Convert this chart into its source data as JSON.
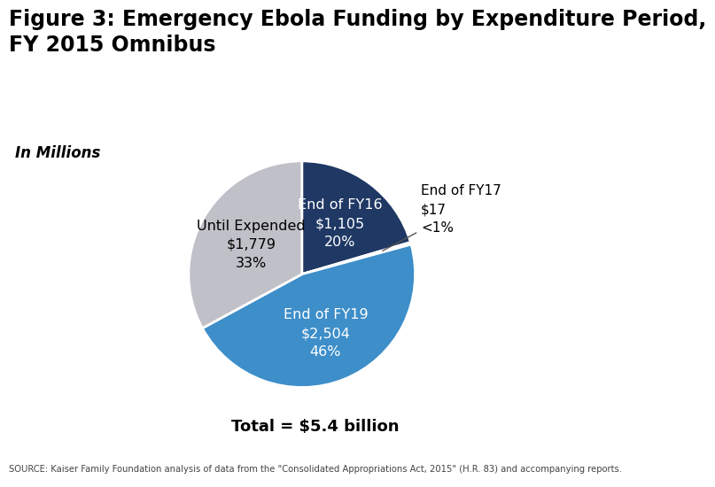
{
  "title": "Figure 3: Emergency Ebola Funding by Expenditure Period,\nFY 2015 Omnibus",
  "subtitle": "In Millions",
  "total_label": "Total = $5.4 billion",
  "source_text": "SOURCE: Kaiser Family Foundation analysis of data from the \"Consolidated Appropriations Act, 2015\" (H.R. 83) and accompanying reports.",
  "slices": [
    {
      "label": "End of FY16",
      "value": 1105,
      "color": "#1f3864",
      "text_color": "white"
    },
    {
      "label": "End of FY17",
      "value": 17,
      "color": "#3d8ec9",
      "text_color": "black"
    },
    {
      "label": "End of FY19",
      "value": 2504,
      "color": "#3d8ec9",
      "text_color": "white"
    },
    {
      "label": "Until Expended",
      "value": 1779,
      "color": "#bfc0c8",
      "text_color": "black"
    }
  ],
  "bg_color": "#ffffff",
  "title_fontsize": 17,
  "subtitle_fontsize": 12,
  "label_fontsize": 11.5,
  "total_fontsize": 13,
  "source_fontsize": 7.2,
  "logo_color": "#1f3864"
}
